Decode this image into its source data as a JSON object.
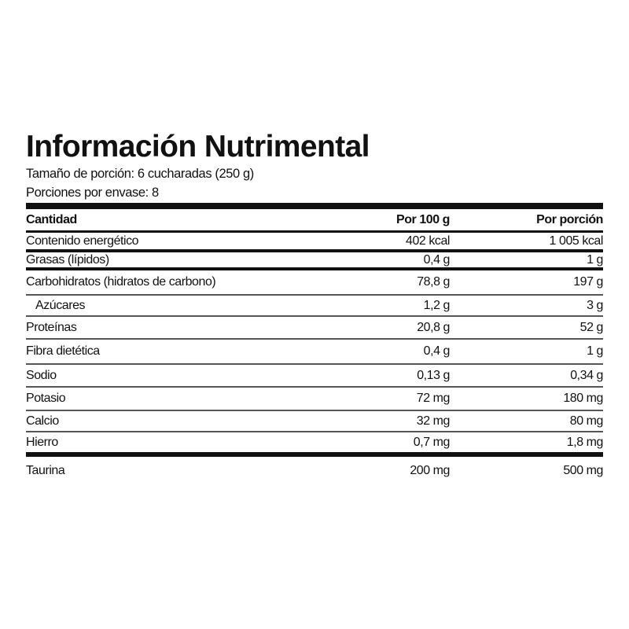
{
  "title": "Información Nutrimental",
  "serving_size": "Tamaño de porción: 6 cucharadas (250 g)",
  "servings_per_container": "Porciones por envase: 8",
  "columns": [
    "Cantidad",
    "Por 100 g",
    "Por porción"
  ],
  "rows": [
    {
      "name": "Contenido energético",
      "per100": "402 kcal",
      "perServing": "1 005 kcal"
    },
    {
      "name": "Grasas (lípidos)",
      "per100": "0,4 g",
      "perServing": "1 g"
    },
    {
      "name": "Carbohidratos (hidratos de carbono)",
      "per100": "78,8 g",
      "perServing": "197 g"
    },
    {
      "name": "Azúcares",
      "per100": "1,2 g",
      "perServing": "3 g"
    },
    {
      "name": "Proteínas",
      "per100": "20,8 g",
      "perServing": "52 g"
    },
    {
      "name": "Fibra dietética",
      "per100": "0,4 g",
      "perServing": "1 g"
    },
    {
      "name": "Sodio",
      "per100": "0,13 g",
      "perServing": "0,34 g"
    },
    {
      "name": "Potasio",
      "per100": "72 mg",
      "perServing": "180 mg"
    },
    {
      "name": "Calcio",
      "per100": "32 mg",
      "perServing": "80 mg"
    },
    {
      "name": "Hierro",
      "per100": "0,7 mg",
      "perServing": "1,8 mg"
    },
    {
      "name": "Taurina",
      "per100": "200 mg",
      "perServing": "500 mg"
    }
  ]
}
